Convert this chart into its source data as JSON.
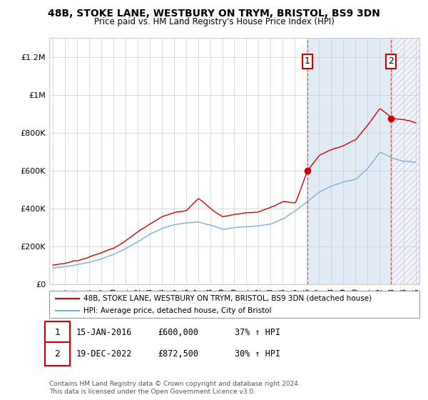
{
  "title": "48B, STOKE LANE, WESTBURY ON TRYM, BRISTOL, BS9 3DN",
  "subtitle": "Price paid vs. HM Land Registry's House Price Index (HPI)",
  "ylim": [
    0,
    1300000
  ],
  "yticks": [
    0,
    200000,
    400000,
    600000,
    800000,
    1000000,
    1200000
  ],
  "ytick_labels": [
    "£0",
    "£200K",
    "£400K",
    "£600K",
    "£800K",
    "£1M",
    "£1.2M"
  ],
  "red_line_color": "#cc0000",
  "blue_line_color": "#7aadd4",
  "bg_shade_color": "#dce8f5",
  "marker1_x": 2016.04,
  "marker1_value": 600000,
  "marker2_x": 2022.96,
  "marker2_value": 872500,
  "vline_color": "#cc0000",
  "legend_red": "48B, STOKE LANE, WESTBURY ON TRYM, BRISTOL, BS9 3DN (detached house)",
  "legend_blue": "HPI: Average price, detached house, City of Bristol",
  "annotation1_num": "1",
  "annotation1_date": "15-JAN-2016",
  "annotation1_price": "£600,000",
  "annotation1_hpi": "37% ↑ HPI",
  "annotation2_num": "2",
  "annotation2_date": "19-DEC-2022",
  "annotation2_price": "£872,500",
  "annotation2_hpi": "30% ↑ HPI",
  "footer": "Contains HM Land Registry data © Crown copyright and database right 2024.\nThis data is licensed under the Open Government Licence v3.0.",
  "background_color": "#ffffff",
  "grid_color": "#cccccc",
  "hpi_years": [
    1995,
    1996,
    1997,
    1998,
    1999,
    2000,
    2001,
    2002,
    2003,
    2004,
    2005,
    2006,
    2007,
    2008,
    2009,
    2010,
    2011,
    2012,
    2013,
    2014,
    2015,
    2016,
    2017,
    2018,
    2019,
    2020,
    2021,
    2022,
    2023,
    2024,
    2025
  ],
  "hpi_vals": [
    85000,
    93000,
    103000,
    118000,
    135000,
    158000,
    190000,
    225000,
    262000,
    292000,
    310000,
    318000,
    328000,
    312000,
    288000,
    298000,
    302000,
    308000,
    318000,
    345000,
    385000,
    435000,
    485000,
    515000,
    540000,
    550000,
    610000,
    695000,
    665000,
    648000,
    643000
  ],
  "red_years": [
    1995,
    1996,
    1997,
    1998,
    1999,
    2000,
    2001,
    2002,
    2003,
    2004,
    2005,
    2006,
    2007,
    2008,
    2009,
    2010,
    2011,
    2012,
    2013,
    2014,
    2015,
    2016,
    2017,
    2018,
    2019,
    2020,
    2021,
    2022,
    2023,
    2024,
    2025
  ],
  "red_vals": [
    100000,
    112000,
    128000,
    148000,
    168000,
    195000,
    238000,
    282000,
    325000,
    365000,
    385000,
    395000,
    460000,
    410000,
    365000,
    380000,
    390000,
    395000,
    415000,
    440000,
    430000,
    600000,
    680000,
    710000,
    730000,
    760000,
    840000,
    930000,
    880000,
    870000,
    850000
  ],
  "xlim_left": 1994.7,
  "xlim_right": 2025.3
}
